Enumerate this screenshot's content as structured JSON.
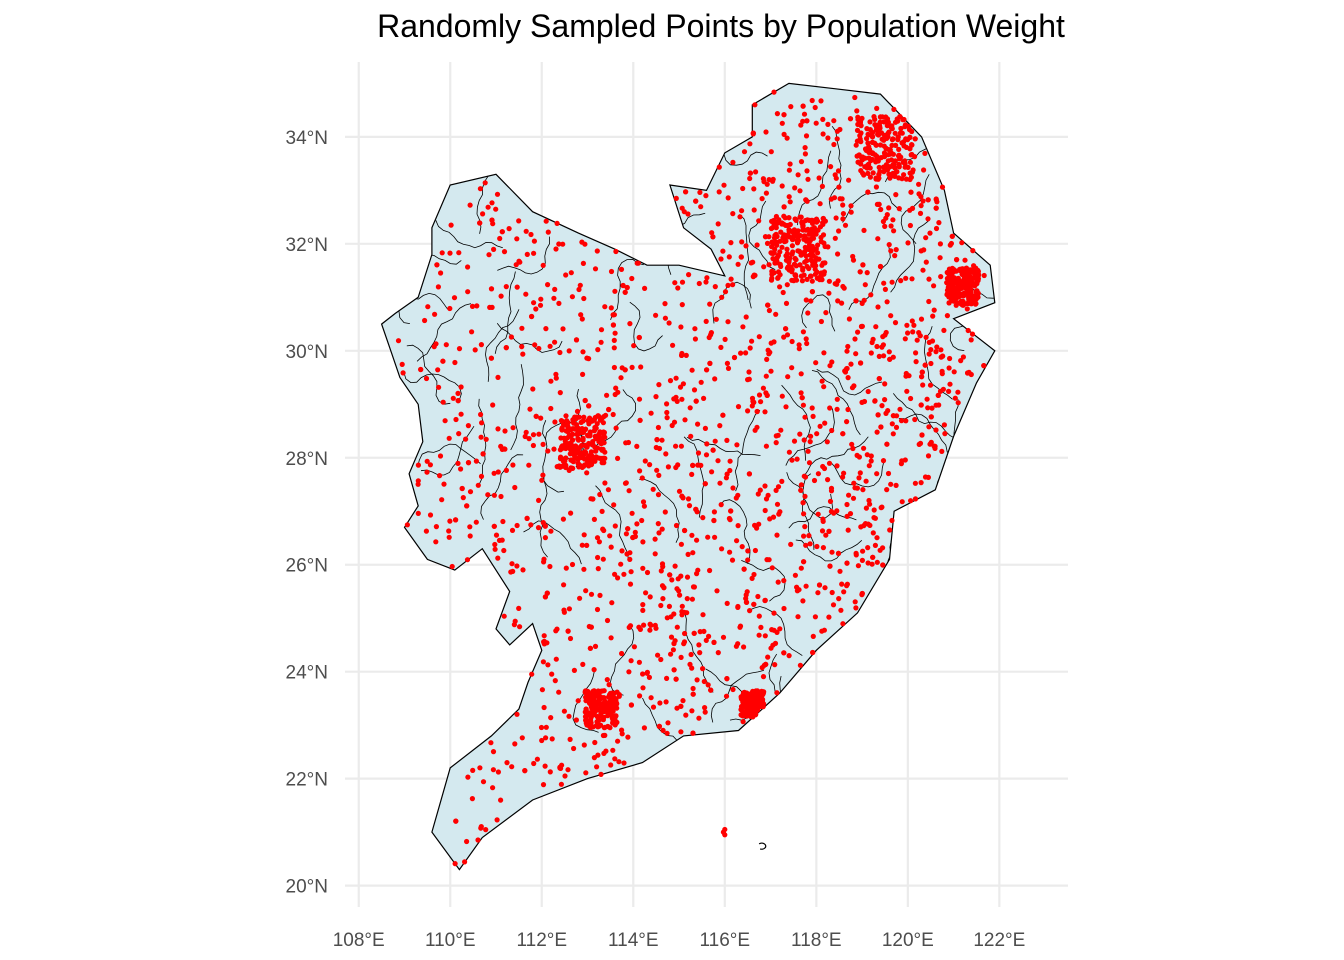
{
  "title": "Randomly Sampled Points by Population Weight",
  "colors": {
    "background": "#ffffff",
    "grid": "#ebebeb",
    "land": "#d4e9ef",
    "border": "#000000",
    "points": "#ff0000",
    "tick_text": "#4d4d4d"
  },
  "axes": {
    "x_ticks": [
      "108°E",
      "110°E",
      "112°E",
      "114°E",
      "116°E",
      "118°E",
      "120°E",
      "122°E"
    ],
    "y_ticks": [
      "34°N",
      "32°N",
      "30°N",
      "28°N",
      "26°N",
      "24°N",
      "22°N",
      "20°N"
    ],
    "xlim": [
      107.7,
      123.5
    ],
    "ylim": [
      19.6,
      35.4
    ]
  },
  "map": {
    "region": "Southeast China (provinces subdivided into prefectures)",
    "outline": [
      [
        110.0,
        22.2
      ],
      [
        109.6,
        21.0
      ],
      [
        110.2,
        20.3
      ],
      [
        110.7,
        20.9
      ],
      [
        111.8,
        21.6
      ],
      [
        113.0,
        22.0
      ],
      [
        114.2,
        22.3
      ],
      [
        115.1,
        22.8
      ],
      [
        116.3,
        22.9
      ],
      [
        117.2,
        23.6
      ],
      [
        118.0,
        24.4
      ],
      [
        118.9,
        25.1
      ],
      [
        119.6,
        26.1
      ],
      [
        119.7,
        27.0
      ],
      [
        120.6,
        27.4
      ],
      [
        121.0,
        28.4
      ],
      [
        121.5,
        29.4
      ],
      [
        121.9,
        30.0
      ],
      [
        121.0,
        30.6
      ],
      [
        121.9,
        30.9
      ],
      [
        121.8,
        31.6
      ],
      [
        121.0,
        32.2
      ],
      [
        120.8,
        33.0
      ],
      [
        120.3,
        34.0
      ],
      [
        119.4,
        34.8
      ],
      [
        118.4,
        34.9
      ],
      [
        117.4,
        35.0
      ],
      [
        116.6,
        34.6
      ],
      [
        116.6,
        34.0
      ],
      [
        116.0,
        33.7
      ],
      [
        115.6,
        33.0
      ],
      [
        114.8,
        33.1
      ],
      [
        115.1,
        32.3
      ],
      [
        115.7,
        31.9
      ],
      [
        116.0,
        31.4
      ],
      [
        115.0,
        31.6
      ],
      [
        114.3,
        31.6
      ],
      [
        113.6,
        31.9
      ],
      [
        112.8,
        32.2
      ],
      [
        111.8,
        32.6
      ],
      [
        111.0,
        33.3
      ],
      [
        110.0,
        33.1
      ],
      [
        109.6,
        32.3
      ],
      [
        109.6,
        31.8
      ],
      [
        109.3,
        31.0
      ],
      [
        108.8,
        30.7
      ],
      [
        108.5,
        30.5
      ],
      [
        108.7,
        30.0
      ],
      [
        108.9,
        29.5
      ],
      [
        109.3,
        29.0
      ],
      [
        109.4,
        28.3
      ],
      [
        109.1,
        27.7
      ],
      [
        109.3,
        27.1
      ],
      [
        109.0,
        26.7
      ],
      [
        109.5,
        26.1
      ],
      [
        110.1,
        25.9
      ],
      [
        110.7,
        26.3
      ],
      [
        111.3,
        25.5
      ],
      [
        111.0,
        24.8
      ],
      [
        111.3,
        24.5
      ],
      [
        111.8,
        24.9
      ],
      [
        112.0,
        24.4
      ],
      [
        111.7,
        23.8
      ],
      [
        111.5,
        23.3
      ],
      [
        110.9,
        22.8
      ]
    ],
    "islands": [
      {
        "name": "",
        "points": [
          [
            116.7,
            20.8
          ],
          [
            116.9,
            20.8
          ]
        ]
      }
    ],
    "sample_points": {
      "count": 2800,
      "seed": 7,
      "marker": "filled-circle"
    }
  }
}
